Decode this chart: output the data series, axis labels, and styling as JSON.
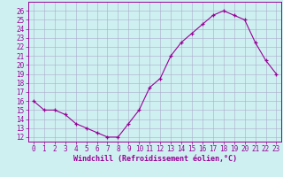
{
  "x": [
    0,
    1,
    2,
    3,
    4,
    5,
    6,
    7,
    8,
    9,
    10,
    11,
    12,
    13,
    14,
    15,
    16,
    17,
    18,
    19,
    20,
    21,
    22,
    23
  ],
  "y": [
    16.0,
    15.0,
    15.0,
    14.5,
    13.5,
    13.0,
    12.5,
    12.0,
    12.0,
    13.5,
    15.0,
    17.5,
    18.5,
    21.0,
    22.5,
    23.5,
    24.5,
    25.5,
    26.0,
    25.5,
    25.0,
    22.5,
    20.5,
    19.0
  ],
  "line_color": "#990099",
  "bg_color": "#cff0f0",
  "grid_color": "#aaaacc",
  "xlabel": "Windchill (Refroidissement éolien,°C)",
  "ylim": [
    11.5,
    27.0
  ],
  "xlim": [
    -0.5,
    23.5
  ],
  "yticks": [
    12,
    13,
    14,
    15,
    16,
    17,
    18,
    19,
    20,
    21,
    22,
    23,
    24,
    25,
    26
  ],
  "xticks": [
    0,
    1,
    2,
    3,
    4,
    5,
    6,
    7,
    8,
    9,
    10,
    11,
    12,
    13,
    14,
    15,
    16,
    17,
    18,
    19,
    20,
    21,
    22,
    23
  ],
  "tick_fontsize": 5.5,
  "xlabel_fontsize": 6.0,
  "line_width": 0.8,
  "marker_size": 3.5
}
